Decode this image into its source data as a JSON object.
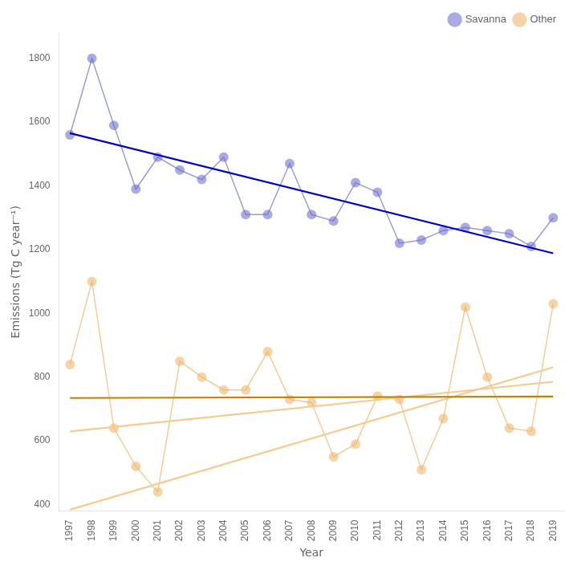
{
  "chart_data": {
    "type": "line",
    "x_label": "Year",
    "y_label": "Emissions (Tg C year⁻¹)",
    "x": [
      1997,
      1998,
      1999,
      2000,
      2001,
      2002,
      2003,
      2004,
      2005,
      2006,
      2007,
      2008,
      2009,
      2010,
      2011,
      2012,
      2013,
      2014,
      2015,
      2016,
      2017,
      2018,
      2019
    ],
    "series": [
      {
        "name": "Savanna",
        "color": "#6666cc",
        "marker": "circle",
        "line_style": "solid",
        "values": [
          1560,
          1800,
          1590,
          1390,
          1490,
          1450,
          1420,
          1490,
          1310,
          1310,
          1470,
          1310,
          1290,
          1410,
          1380,
          1220,
          1230,
          1260,
          1270,
          1260,
          1250,
          1210,
          1300
        ]
      },
      {
        "color": "#0000cc",
        "marker": "none",
        "line_style": "solid",
        "x": [
          1997,
          2019
        ],
        "values": [
          1565.434783,
          1188.478261
        ]
      },
      {
        "name": "Other",
        "color": "#f0b060",
        "marker": "circle",
        "line_style": "solid",
        "values": [
          840,
          1100,
          640,
          520,
          440,
          850,
          800,
          760,
          760,
          880,
          730,
          720,
          550,
          590,
          740,
          730,
          510,
          670,
          1020,
          800,
          640,
          630,
          1030
        ]
      },
      {
        "color": "#c88000",
        "marker": "none",
        "line_style": "solid",
        "x": [
          1997,
          2019
        ],
        "values": [
          734.565217,
          739.347826
        ]
      },
      {
        "color": "#f5cc90",
        "marker": "none",
        "line_style": "solid",
        "x": [
          1997,
          2019
        ],
        "values": [
          629.82684,
          785.541126
        ]
      },
      {
        "color": "#f5cc90",
        "marker": "none",
        "line_style": "solid",
        "x": [
          1997,
          2019
        ],
        "values": [
          383.974359,
          830.897436
        ]
      }
    ],
    "xlim": [
      1996.5,
      2019.5
    ],
    "xticks": [
      1997,
      1998,
      1999,
      2000,
      2001,
      2002,
      2003,
      2004,
      2005,
      2006,
      2007,
      2008,
      2009,
      2010,
      2011,
      2012,
      2013,
      2014,
      2015,
      2016,
      2017,
      2018,
      2019
    ],
    "ylim": [
      380,
      1880
    ],
    "yticks": [
      400,
      600,
      800,
      1000,
      1200,
      1400,
      1600,
      1800
    ],
    "grid": false,
    "legend": "upper right"
  }
}
